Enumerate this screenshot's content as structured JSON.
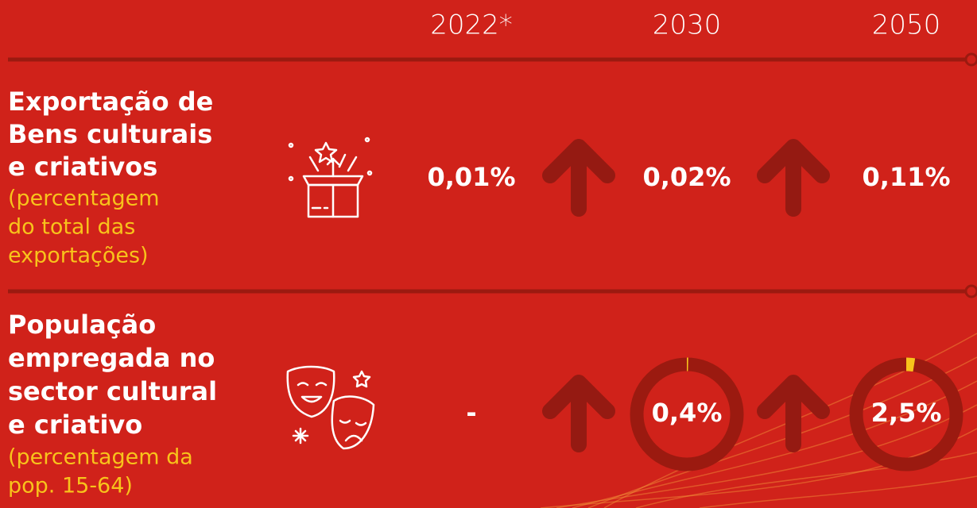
{
  "columns": [
    "2022*",
    "2030",
    "2050"
  ],
  "rows": [
    {
      "title_lines": [
        "Exportação de",
        "Bens culturais",
        "e criativos"
      ],
      "subtitle_lines": [
        "(percentagem",
        "do total das",
        "exportações)"
      ],
      "cells": [
        "0,01%",
        "0,02%",
        "0,11%"
      ]
    },
    {
      "title_lines": [
        "População",
        "empregada no",
        "sector cultural",
        "e criativo"
      ],
      "subtitle_lines": [
        "(percentagem da",
        "pop. 15-64)"
      ],
      "cells": [
        "-",
        {
          "value": 0.4,
          "label": "0,4%"
        },
        {
          "value": 2.5,
          "label": "2,5%"
        }
      ]
    }
  ]
}
